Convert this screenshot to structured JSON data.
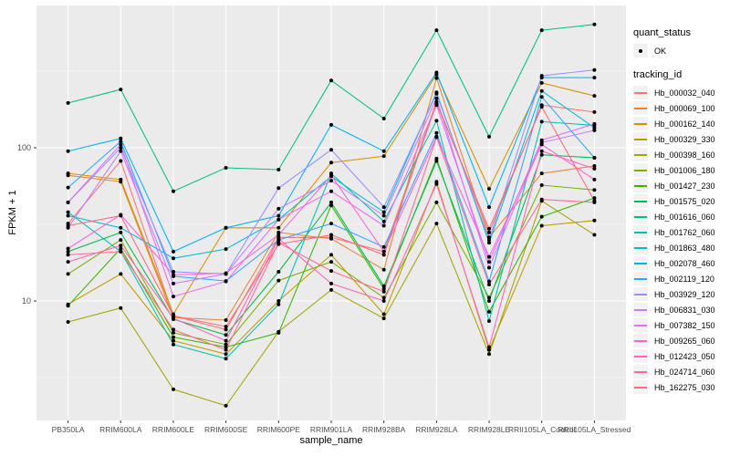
{
  "colors": {
    "panel_bg": "#EBEBEB",
    "grid": "#FFFFFF",
    "tick_mark": "#333333",
    "tick_label": "#4D4D4D",
    "text": "#000000",
    "legend_key_bg": "#F2F2F2",
    "point": "#000000"
  },
  "legend": {
    "quant_status": {
      "title": "quant_status",
      "items": [
        {
          "label": "OK",
          "marker": "black-point"
        }
      ]
    },
    "tracking_id": {
      "title": "tracking_id"
    }
  },
  "chart_data": {
    "type": "line",
    "title": "",
    "xlabel": "sample_name",
    "ylabel": "FPKM + 1",
    "y_scale": "log10",
    "grid": true,
    "legend_position": "right",
    "ylim": [
      1.6,
      860
    ],
    "y_ticks": [
      100,
      10
    ],
    "y_tick_labels": [
      "100",
      "10"
    ],
    "y_minor_ticks": [
      316.23,
      31.623,
      3.1623
    ],
    "categories": [
      "PB350LA",
      "RRIM600LA",
      "RRIM600LE",
      "RRIM600SE",
      "RRIM600PE",
      "RRIM901LA",
      "RRIM928BA",
      "RRIM928LA",
      "RRIM928LE",
      "RRII105LA_Control",
      "RRII105LA_Stressed"
    ],
    "point_legend_label": "OK",
    "series": [
      {
        "name": "Hb_000032_040",
        "color": "#F8766D",
        "values": [
          32,
          82,
          8.0,
          6.5,
          26,
          26,
          21,
          200,
          28,
          190,
          171
        ]
      },
      {
        "name": "Hb_000069_100",
        "color": "#EA8331",
        "values": [
          66,
          60,
          7.8,
          7.5,
          28,
          25.5,
          16,
          285,
          26,
          68,
          76
        ]
      },
      {
        "name": "Hb_000162_140",
        "color": "#D89000",
        "values": [
          68,
          62,
          8.2,
          30,
          30,
          80,
          88,
          300,
          54,
          265,
          218
        ]
      },
      {
        "name": "Hb_000329_330",
        "color": "#C09B00",
        "values": [
          9.5,
          15,
          5.5,
          4.5,
          10,
          20,
          8.2,
          60,
          4.8,
          31,
          33.5
        ]
      },
      {
        "name": "Hb_000398_160",
        "color": "#A3A500",
        "values": [
          7.3,
          9.0,
          2.65,
          2.07,
          6.3,
          11.8,
          7.7,
          32,
          4.5,
          45,
          27
        ]
      },
      {
        "name": "Hb_001006_180",
        "color": "#7CAE00",
        "values": [
          15,
          25,
          6.2,
          5.2,
          13.6,
          18,
          10.5,
          44,
          10.5,
          57,
          53
        ]
      },
      {
        "name": "Hb_001427_230",
        "color": "#39B600",
        "values": [
          9.3,
          22,
          5.8,
          5.0,
          6.2,
          42,
          12,
          85,
          8.5,
          35.5,
          47
        ]
      },
      {
        "name": "Hb_001575_020",
        "color": "#00BB4E",
        "values": [
          21,
          28,
          7.6,
          6.0,
          15.5,
          44,
          12.5,
          82,
          10,
          90,
          86
        ]
      },
      {
        "name": "Hb_001616_060",
        "color": "#00C087",
        "values": [
          196,
          240,
          52,
          74,
          72,
          275,
          155,
          585,
          118,
          585,
          638
        ]
      },
      {
        "name": "Hb_001762_060",
        "color": "#00C0AF",
        "values": [
          38,
          21,
          5.2,
          4.2,
          9.5,
          68,
          33,
          150,
          7.4,
          148,
          140
        ]
      },
      {
        "name": "Hb_001863_480",
        "color": "#00BCD8",
        "values": [
          36,
          30,
          19,
          21.8,
          34,
          65,
          38,
          230,
          24,
          235,
          135
        ]
      },
      {
        "name": "Hb_002078_460",
        "color": "#00B0F6",
        "values": [
          95,
          115,
          21,
          30,
          36,
          141,
          95,
          310,
          41,
          287,
          287
        ]
      },
      {
        "name": "Hb_002119_120",
        "color": "#35A2FF",
        "values": [
          55,
          110,
          14.5,
          13.5,
          25,
          32,
          22.5,
          125,
          13.4,
          215,
          86
        ]
      },
      {
        "name": "Hb_003929_120",
        "color": "#9590FF",
        "values": [
          44,
          100,
          15.5,
          15,
          54.5,
          97,
          41,
          225,
          25,
          295,
          322
        ]
      },
      {
        "name": "Hb_006831_030",
        "color": "#C77CFF",
        "values": [
          30,
          95,
          13,
          15,
          40,
          61,
          36,
          210,
          16.5,
          108,
          130
        ]
      },
      {
        "name": "Hb_007382_150",
        "color": "#E76BF3",
        "values": [
          44,
          105,
          10.7,
          13.4,
          34,
          52,
          31,
          190,
          18,
          112,
          143
        ]
      },
      {
        "name": "Hb_009265_060",
        "color": "#FA62DB",
        "values": [
          22,
          36.5,
          14.8,
          15.2,
          27,
          66,
          21,
          118,
          19.4,
          105,
          62
        ]
      },
      {
        "name": "Hb_012423_050",
        "color": "#FF62BC",
        "values": [
          18,
          23,
          7.7,
          5.5,
          25.5,
          13,
          10,
          58,
          5.0,
          95,
          73
        ]
      },
      {
        "name": "Hb_024714_060",
        "color": "#FF6A98",
        "values": [
          20,
          21,
          6.5,
          4.8,
          24,
          15.7,
          11.5,
          117,
          12.8,
          46,
          44
        ]
      },
      {
        "name": "Hb_162275_030",
        "color": "#FC6883",
        "values": [
          31,
          36,
          8.0,
          6.8,
          23.5,
          27,
          20,
          195,
          29.6,
          185,
          45
        ]
      }
    ]
  }
}
